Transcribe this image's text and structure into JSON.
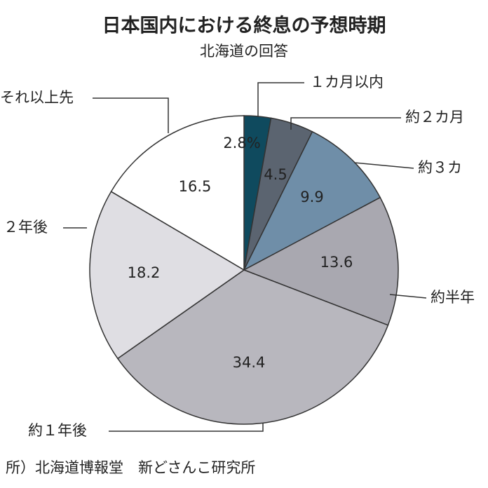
{
  "chart_data": {
    "type": "pie",
    "title": "日本国内における終息の予想時期",
    "subtitle": "北海道の回答",
    "categories": [
      "１カ月以内",
      "約２カ月",
      "約３カ",
      "約半年",
      "約１年後",
      "２年後",
      "それ以上先"
    ],
    "values": [
      2.8,
      4.5,
      9.9,
      13.6,
      34.4,
      18.2,
      16.5
    ],
    "value_labels": [
      "2.8%",
      "4.5",
      "9.9",
      "13.6",
      "34.4",
      "18.2",
      "16.5"
    ],
    "colors": [
      "#0f4a5e",
      "#5b6470",
      "#6f8ea8",
      "#a9a8b0",
      "#b8b7be",
      "#dfdee3",
      "#ffffff"
    ],
    "source": "所）北海道博報堂　新どさんこ研究所"
  }
}
